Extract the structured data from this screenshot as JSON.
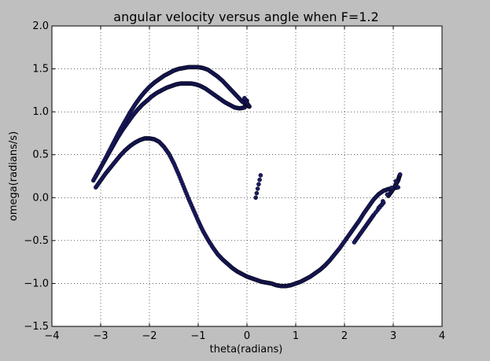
{
  "chart_data": {
    "type": "scatter",
    "title": "angular velocity versus angle when F=1.2",
    "xlabel": "theta(radians)",
    "ylabel": "omega(radians/s)",
    "xlim": [
      -4,
      4
    ],
    "ylim": [
      -1.5,
      2.0
    ],
    "xticks": [
      -4,
      -3,
      -2,
      -1,
      0,
      1,
      2,
      3,
      4
    ],
    "xtick_labels": [
      "−4",
      "−3",
      "−2",
      "−1",
      "0",
      "1",
      "2",
      "3",
      "4"
    ],
    "yticks": [
      -1.5,
      -1.0,
      -0.5,
      0.0,
      0.5,
      1.0,
      1.5,
      2.0
    ],
    "ytick_labels": [
      "−1.5",
      "−1.0",
      "−0.5",
      "0.0",
      "0.5",
      "1.0",
      "1.5",
      "2.0"
    ],
    "grid": true,
    "marker_color": "#1a1a66",
    "background_color": "#bfbfbf",
    "plot_background_color": "#ffffff",
    "series": [
      {
        "x": [
          -3.1,
          -3.0,
          -2.9,
          -2.8,
          -2.7,
          -2.6,
          -2.5,
          -2.4,
          -2.3,
          -2.2,
          -2.1,
          -2.0,
          -1.9,
          -1.8,
          -1.7,
          -1.6,
          -1.5,
          -1.4,
          -1.3,
          -1.2,
          -1.1,
          -1.0,
          -0.9,
          -0.8,
          -0.7,
          -0.6,
          -0.5,
          -0.4,
          -0.3,
          -0.2,
          -0.1,
          0.0,
          0.1,
          0.2,
          0.3,
          0.4,
          0.5,
          0.6,
          0.7,
          0.8,
          0.9,
          1.0,
          1.1,
          1.2,
          1.3,
          1.4,
          1.5,
          1.6,
          1.7,
          1.8,
          1.9,
          2.0,
          2.1,
          2.2,
          2.3,
          2.4,
          2.5,
          2.6,
          2.7,
          2.8,
          2.9,
          3.0,
          3.1
        ],
        "y": [
          0.12,
          0.2,
          0.28,
          0.35,
          0.42,
          0.49,
          0.55,
          0.6,
          0.64,
          0.67,
          0.69,
          0.69,
          0.68,
          0.65,
          0.59,
          0.51,
          0.4,
          0.27,
          0.13,
          -0.01,
          -0.14,
          -0.27,
          -0.39,
          -0.49,
          -0.58,
          -0.66,
          -0.72,
          -0.77,
          -0.82,
          -0.86,
          -0.89,
          -0.92,
          -0.94,
          -0.96,
          -0.98,
          -0.99,
          -1.0,
          -1.02,
          -1.03,
          -1.03,
          -1.02,
          -1.0,
          -0.98,
          -0.95,
          -0.92,
          -0.88,
          -0.84,
          -0.79,
          -0.73,
          -0.66,
          -0.59,
          -0.51,
          -0.43,
          -0.35,
          -0.27,
          -0.18,
          -0.1,
          -0.02,
          0.04,
          0.08,
          0.1,
          0.11,
          0.12
        ]
      },
      {
        "x": [
          -3.15,
          -3.05,
          -2.95,
          -2.85,
          -2.75,
          -2.65,
          -2.55,
          -2.45,
          -2.35,
          -2.25,
          -2.15,
          -2.05,
          -1.95,
          -1.85,
          -1.75,
          -1.65,
          -1.55,
          -1.45,
          -1.35,
          -1.25,
          -1.15,
          -1.05,
          -0.95,
          -0.85,
          -0.75,
          -0.65,
          -0.55,
          -0.45,
          -0.35,
          -0.25,
          -0.15,
          -0.05,
          0.0
        ],
        "y": [
          0.2,
          0.3,
          0.4,
          0.5,
          0.6,
          0.7,
          0.79,
          0.87,
          0.95,
          1.02,
          1.08,
          1.13,
          1.18,
          1.22,
          1.25,
          1.28,
          1.3,
          1.32,
          1.33,
          1.33,
          1.33,
          1.32,
          1.3,
          1.27,
          1.23,
          1.19,
          1.15,
          1.11,
          1.08,
          1.05,
          1.04,
          1.05,
          1.13
        ]
      },
      {
        "x": [
          -3.1,
          -3.0,
          -2.9,
          -2.8,
          -2.7,
          -2.6,
          -2.5,
          -2.4,
          -2.3,
          -2.2,
          -2.1,
          -2.0,
          -1.9,
          -1.8,
          -1.7,
          -1.6,
          -1.5,
          -1.4,
          -1.3,
          -1.2,
          -1.1,
          -1.0,
          -0.9,
          -0.8,
          -0.7,
          -0.6,
          -0.5,
          -0.4,
          -0.3,
          -0.2,
          -0.1,
          0.0,
          0.05,
          0.0,
          -0.05
        ],
        "y": [
          0.25,
          0.35,
          0.46,
          0.57,
          0.68,
          0.79,
          0.89,
          0.99,
          1.08,
          1.16,
          1.23,
          1.29,
          1.34,
          1.38,
          1.42,
          1.45,
          1.48,
          1.5,
          1.51,
          1.52,
          1.52,
          1.52,
          1.51,
          1.49,
          1.45,
          1.41,
          1.36,
          1.3,
          1.24,
          1.18,
          1.12,
          1.08,
          1.06,
          1.1,
          1.16
        ]
      },
      {
        "x": [
          2.9,
          2.95,
          3.0,
          3.05,
          3.1,
          3.12,
          3.14,
          2.7,
          2.8,
          2.6,
          2.5,
          2.4,
          2.3,
          2.2
        ],
        "y": [
          0.02,
          0.06,
          0.1,
          0.15,
          0.2,
          0.24,
          0.27,
          -0.12,
          -0.06,
          -0.2,
          -0.28,
          -0.36,
          -0.44,
          -0.52
        ]
      },
      {
        "x": [
          0.28,
          0.18
        ],
        "y": [
          0.26,
          0.0
        ]
      }
    ]
  }
}
